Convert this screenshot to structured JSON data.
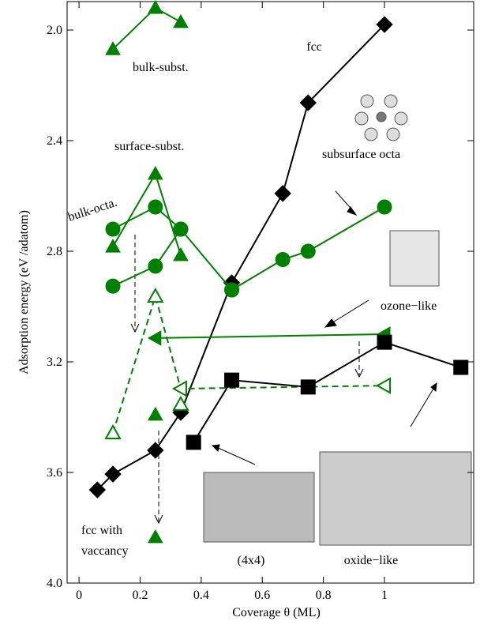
{
  "chart_data": {
    "type": "line",
    "x_label": "Coverage θ (ML)",
    "y_label": "Adsorption energy (eV /adatom)",
    "xlim": [
      -0.039,
      1.292
    ],
    "ylim": [
      1.897,
      4.0
    ],
    "y_inverted": true,
    "xticks": [
      0,
      0.2,
      0.4,
      0.6,
      0.8,
      1
    ],
    "yticks": [
      {
        "value": 2.0,
        "label": "2.0"
      },
      {
        "value": 2.4,
        "label": "2.4"
      },
      {
        "value": 2.8,
        "label": "2.8"
      },
      {
        "value": 3.2,
        "label": "3.2"
      },
      {
        "value": 3.6,
        "label": "3.6"
      },
      {
        "value": 4.0,
        "label": "4.0"
      }
    ],
    "series": [
      {
        "color": "#000000",
        "line": "solid",
        "marker": "diamond",
        "x": [
          0.06,
          0.111,
          0.25,
          0.333,
          0.5,
          0.667,
          0.75,
          1.0
        ],
        "values": [
          3.663,
          3.606,
          3.52,
          3.383,
          2.914,
          2.591,
          2.263,
          1.98
        ]
      },
      {
        "color": "#008000",
        "line": "solid",
        "marker": "triangle-up",
        "x": [
          0.111,
          0.25,
          0.333
        ],
        "values": [
          2.069,
          1.92,
          1.971
        ]
      },
      {
        "color": "#008000",
        "line": "solid",
        "marker": "triangle-up",
        "x": [
          0.111,
          0.25,
          0.333
        ],
        "values": [
          2.783,
          2.52,
          2.814
        ]
      },
      {
        "color": "#008000",
        "line": "solid",
        "marker": "circle",
        "x": [
          0.111,
          0.25,
          0.333,
          0.5
        ],
        "values": [
          2.72,
          2.64,
          2.72,
          2.94
        ]
      },
      {
        "color": "#008000",
        "line": "solid",
        "marker": "circle",
        "x": [
          0.111,
          0.25,
          0.333
        ],
        "values": [
          2.926,
          2.854,
          2.72
        ]
      },
      {
        "color": "#008000",
        "line": "solid",
        "marker": "circle",
        "x": [
          0.5,
          0.667,
          0.75,
          1.0
        ],
        "values": [
          2.94,
          2.83,
          2.8,
          2.64
        ]
      },
      {
        "color": "#008000",
        "line": "solid",
        "marker": "triangle-left",
        "x": [
          0.25,
          1.0
        ],
        "values": [
          3.114,
          3.1
        ]
      },
      {
        "color": "#008000",
        "line": "dashed",
        "markers": [
          "triangle-up-open",
          "triangle-up-open",
          "triangle-left-open",
          "triangle-left-open"
        ],
        "x": [
          0.111,
          0.25,
          0.333,
          1.0
        ],
        "values": [
          3.457,
          2.963,
          3.297,
          3.286
        ]
      },
      {
        "color": "#008000",
        "line": "none",
        "marker": "triangle-up",
        "x": [
          0.25,
          0.25
        ],
        "values": [
          3.391,
          3.834
        ]
      },
      {
        "color": "#008000",
        "line": "none",
        "marker": "triangle-up-open",
        "x": [
          0.333
        ],
        "values": [
          3.354
        ]
      },
      {
        "color": "#000000",
        "line": "solid",
        "marker": "square",
        "x": [
          0.375,
          0.5,
          0.75,
          1.0,
          1.25
        ],
        "values": [
          3.491,
          3.266,
          3.291,
          3.129,
          3.22
        ]
      }
    ],
    "annotations": [
      "fcc",
      "bulk-subst.",
      "surface-subst.",
      "bulk-octa.",
      "subsurface octa",
      "ozone−like",
      "fcc with",
      "vaccancy",
      "(4x4)",
      "oxide−like"
    ]
  }
}
